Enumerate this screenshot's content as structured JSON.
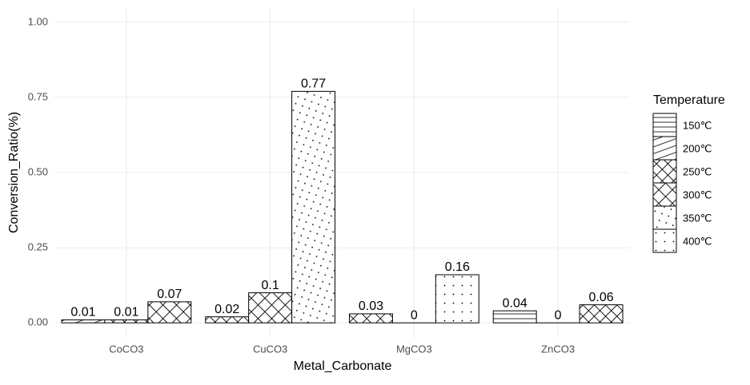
{
  "chart_data": {
    "type": "bar",
    "x_label": "Metal_Carbonate",
    "y_label": "Conversion_Ratio(%)",
    "categories": [
      "CoCO3",
      "CuCO3",
      "MgCO3",
      "ZnCO3"
    ],
    "series": [
      {
        "name": "150℃",
        "values": [
          null,
          null,
          null,
          0.04
        ]
      },
      {
        "name": "200℃",
        "values": [
          0.01,
          null,
          null,
          0
        ]
      },
      {
        "name": "250℃",
        "values": [
          0.01,
          0.02,
          null,
          0.06
        ]
      },
      {
        "name": "300℃",
        "values": [
          0.07,
          0.1,
          0.03,
          null
        ]
      },
      {
        "name": "350℃",
        "values": [
          null,
          0.77,
          0,
          null
        ]
      },
      {
        "name": "400℃",
        "values": [
          null,
          null,
          0.16,
          null
        ]
      }
    ],
    "legend_title": "Temperature",
    "ylim": [
      -0.05,
      1.05
    ],
    "yticks": [
      {
        "value": 0,
        "label": "0.00"
      },
      {
        "value": 0.25,
        "label": "0.25"
      },
      {
        "value": 0.5,
        "label": "0.50"
      },
      {
        "value": 0.75,
        "label": "0.75"
      },
      {
        "value": 1,
        "label": "1.00"
      }
    ],
    "grid": true,
    "legend_position": "right"
  }
}
